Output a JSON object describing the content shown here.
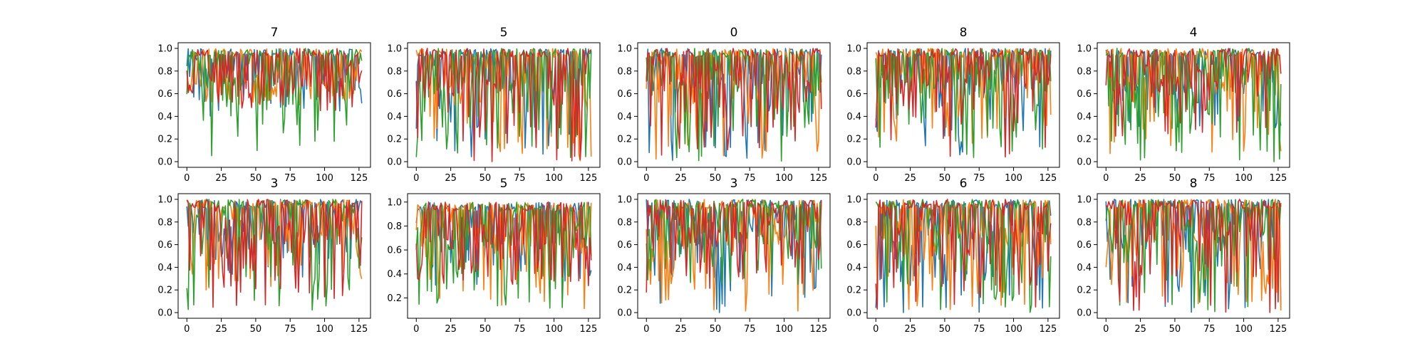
{
  "chart_data": {
    "type": "line",
    "layout": {
      "rows": 2,
      "cols": 5
    },
    "grid": false,
    "legend": "none",
    "series_colors": [
      "#1f77b4",
      "#ff7f0e",
      "#2ca02c",
      "#d62728"
    ],
    "x_ticks": [
      "0",
      "25",
      "50",
      "75",
      "100",
      "125"
    ],
    "y_ticks": [
      "0.0",
      "0.2",
      "0.4",
      "0.6",
      "0.8",
      "1.0"
    ],
    "y_ticks_alt": [
      "0.2",
      "0.4",
      "0.6",
      "0.8",
      "1.0"
    ],
    "panels": [
      {
        "title": "7",
        "xlim": [
          -6.35,
          133.35
        ],
        "ylim": [
          -0.05,
          1.05
        ],
        "y_tick_set": "y_ticks",
        "seed": 7,
        "floors": [
          0.4,
          0.5,
          0.0,
          0.45
        ]
      },
      {
        "title": "5",
        "xlim": [
          -6.35,
          133.35
        ],
        "ylim": [
          -0.05,
          1.05
        ],
        "y_tick_set": "y_ticks",
        "seed": 51,
        "floors": [
          0.0,
          0.0,
          0.0,
          0.0
        ]
      },
      {
        "title": "0",
        "xlim": [
          -6.35,
          133.35
        ],
        "ylim": [
          -0.05,
          1.05
        ],
        "y_tick_set": "y_ticks",
        "seed": 3,
        "floors": [
          0.0,
          0.0,
          0.0,
          0.05
        ]
      },
      {
        "title": "8",
        "xlim": [
          -6.35,
          133.35
        ],
        "ylim": [
          -0.05,
          1.05
        ],
        "y_tick_set": "y_ticks",
        "seed": 88,
        "floors": [
          0.05,
          0.1,
          0.0,
          0.02
        ]
      },
      {
        "title": "4",
        "xlim": [
          -6.35,
          133.35
        ],
        "ylim": [
          -0.05,
          1.05
        ],
        "y_tick_set": "y_ticks",
        "seed": 41,
        "floors": [
          0.3,
          0.05,
          0.0,
          0.2
        ]
      },
      {
        "title": "3",
        "xlim": [
          -6.35,
          133.35
        ],
        "ylim": [
          -0.05,
          1.05
        ],
        "y_tick_set": "y_ticks",
        "seed": 33,
        "floors": [
          0.3,
          0.2,
          0.0,
          0.0
        ]
      },
      {
        "title": "5",
        "xlim": [
          -6.35,
          133.35
        ],
        "ylim": [
          0.03,
          1.07
        ],
        "y_tick_set": "y_ticks_alt",
        "seed": 55,
        "floors": [
          0.3,
          0.1,
          0.1,
          0.3
        ]
      },
      {
        "title": "3",
        "xlim": [
          -6.35,
          133.35
        ],
        "ylim": [
          -0.05,
          1.05
        ],
        "y_tick_set": "y_ticks",
        "seed": 37,
        "floors": [
          0.0,
          0.0,
          0.25,
          0.15
        ]
      },
      {
        "title": "6",
        "xlim": [
          -6.35,
          133.35
        ],
        "ylim": [
          -0.05,
          1.05
        ],
        "y_tick_set": "y_ticks",
        "seed": 66,
        "floors": [
          0.0,
          0.0,
          0.0,
          0.0
        ]
      },
      {
        "title": "8",
        "xlim": [
          -6.35,
          133.35
        ],
        "ylim": [
          -0.05,
          1.05
        ],
        "y_tick_set": "y_ticks",
        "seed": 81,
        "floors": [
          0.0,
          0.0,
          0.0,
          0.0
        ]
      }
    ],
    "points_per_series": 128
  }
}
